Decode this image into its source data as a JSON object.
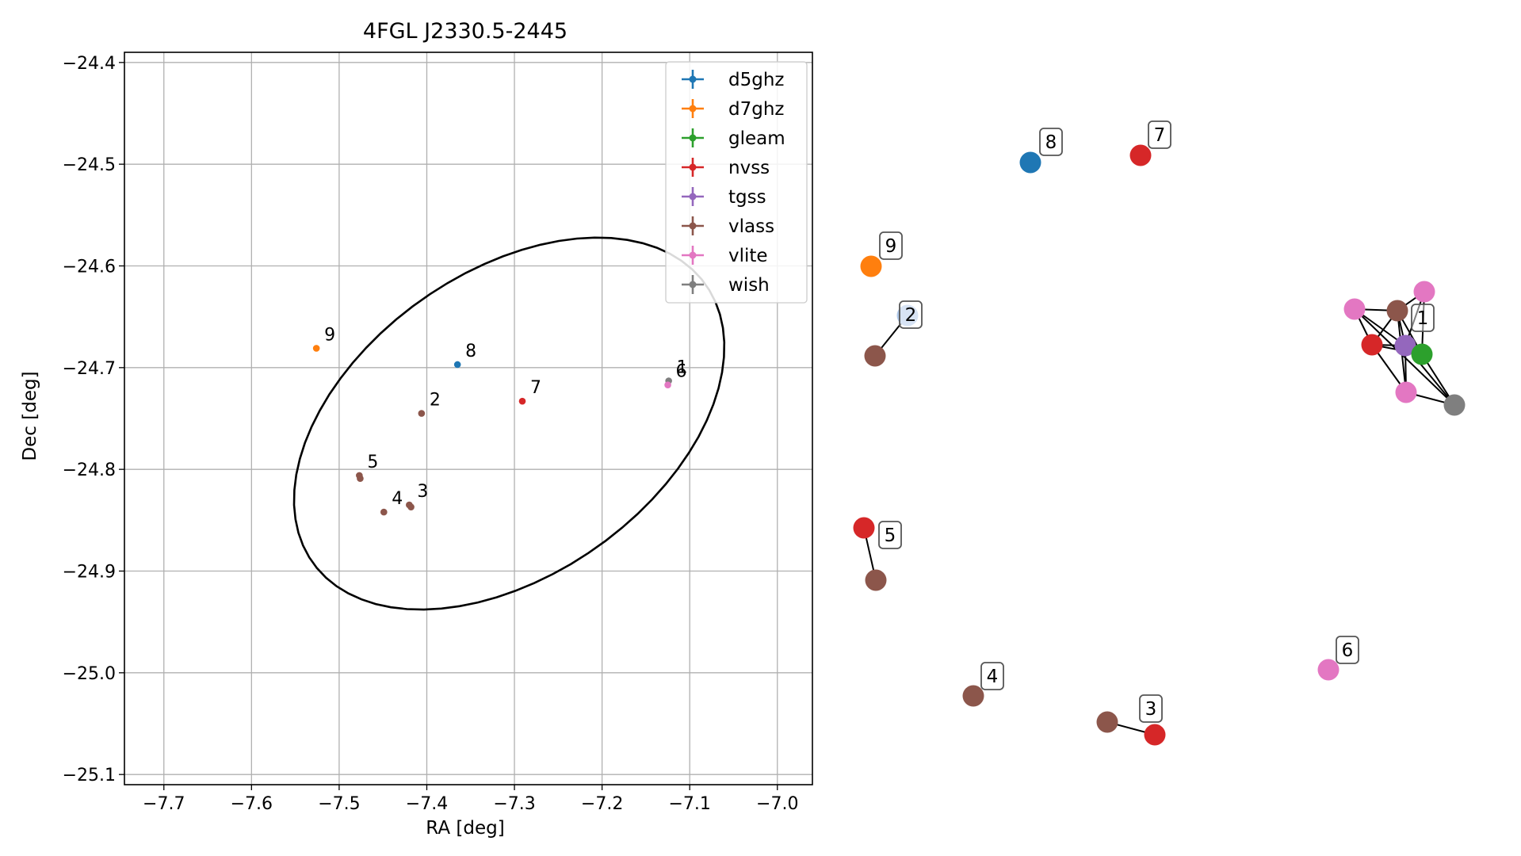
{
  "chart_data": [
    {
      "type": "scatter",
      "title": "4FGL J2330.5-2445",
      "xlabel": "RA [deg]",
      "ylabel": "Dec [deg]",
      "xlim": [
        -7.745,
        -6.96
      ],
      "ylim": [
        -25.11,
        -24.39
      ],
      "x_ticks": [
        "−7.7",
        "−7.6",
        "−7.5",
        "−7.4",
        "−7.3",
        "−7.2",
        "−7.1",
        "−7.0"
      ],
      "y_ticks": [
        "−24.4",
        "−24.5",
        "−24.6",
        "−24.7",
        "−24.8",
        "−24.9",
        "−25.0",
        "−25.1"
      ],
      "grid": true,
      "legend_position": "top-right",
      "series": [
        {
          "name": "d5ghz",
          "color": "#1f77b4"
        },
        {
          "name": "d7ghz",
          "color": "#ff7f0e"
        },
        {
          "name": "gleam",
          "color": "#2ca02c"
        },
        {
          "name": "nvss",
          "color": "#d62728"
        },
        {
          "name": "tgss",
          "color": "#9467bd"
        },
        {
          "name": "vlass",
          "color": "#8c564b"
        },
        {
          "name": "vlite",
          "color": "#e377c2"
        },
        {
          "name": "wish",
          "color": "#7f7f7f"
        }
      ],
      "points": [
        {
          "ra": -7.526,
          "dec": -24.681,
          "series": "d7ghz",
          "label": "9"
        },
        {
          "ra": -7.365,
          "dec": -24.697,
          "series": "d5ghz",
          "label": "8"
        },
        {
          "ra": -7.291,
          "dec": -24.733,
          "series": "nvss",
          "label": "7"
        },
        {
          "ra": -7.406,
          "dec": -24.745,
          "series": "vlass",
          "label": "2"
        },
        {
          "ra": -7.477,
          "dec": -24.806,
          "series": "vlass",
          "label": "5"
        },
        {
          "ra": -7.476,
          "dec": -24.809,
          "series": "vlass",
          "label": ""
        },
        {
          "ra": -7.42,
          "dec": -24.835,
          "series": "vlass",
          "label": "3"
        },
        {
          "ra": -7.418,
          "dec": -24.837,
          "series": "vlass",
          "label": ""
        },
        {
          "ra": -7.449,
          "dec": -24.842,
          "series": "vlass",
          "label": "4"
        },
        {
          "ra": -7.124,
          "dec": -24.713,
          "series": "wish",
          "label": "1"
        },
        {
          "ra": -7.125,
          "dec": -24.717,
          "series": "vlite",
          "label": "6"
        }
      ],
      "ellipse": {
        "center": [
          -7.306,
          -24.755
        ],
        "semi_axes": [
          0.264,
          0.155
        ],
        "angle_deg": 27,
        "color": "#000000"
      }
    },
    {
      "type": "network",
      "nodes": [
        {
          "id": "n8",
          "series": "d5ghz",
          "color": "#1f77b4",
          "label": "8"
        },
        {
          "id": "n7",
          "series": "nvss",
          "color": "#d62728",
          "label": "7"
        },
        {
          "id": "n9",
          "series": "d7ghz",
          "color": "#ff7f0e",
          "label": "9"
        },
        {
          "id": "n2a",
          "series": "d5ghz",
          "color": "#aec7e8",
          "label": "2"
        },
        {
          "id": "n2b",
          "series": "vlass",
          "color": "#8c564b",
          "label": ""
        },
        {
          "id": "c1",
          "series": "vlite",
          "color": "#e377c2",
          "label": ""
        },
        {
          "id": "c2",
          "series": "vlass",
          "color": "#8c564b",
          "label": ""
        },
        {
          "id": "c3",
          "series": "vlite",
          "color": "#e377c2",
          "label": ""
        },
        {
          "id": "c4",
          "series": "nvss",
          "color": "#d62728",
          "label": ""
        },
        {
          "id": "c5",
          "series": "tgss",
          "color": "#9467bd",
          "label": "1"
        },
        {
          "id": "c6",
          "series": "gleam",
          "color": "#2ca02c",
          "label": ""
        },
        {
          "id": "c7",
          "series": "vlite",
          "color": "#e377c2",
          "label": ""
        },
        {
          "id": "c8",
          "series": "wish",
          "color": "#7f7f7f",
          "label": ""
        },
        {
          "id": "n5a",
          "series": "nvss",
          "color": "#d62728",
          "label": "5"
        },
        {
          "id": "n5b",
          "series": "vlass",
          "color": "#8c564b",
          "label": ""
        },
        {
          "id": "n6",
          "series": "vlite",
          "color": "#e377c2",
          "label": "6"
        },
        {
          "id": "n4",
          "series": "vlass",
          "color": "#8c564b",
          "label": "4"
        },
        {
          "id": "n3a",
          "series": "vlass",
          "color": "#8c564b",
          "label": ""
        },
        {
          "id": "n3b",
          "series": "nvss",
          "color": "#d62728",
          "label": "3"
        }
      ],
      "edges": [
        [
          "n2a",
          "n2b"
        ],
        [
          "n5a",
          "n5b"
        ],
        [
          "n3a",
          "n3b"
        ],
        [
          "c1",
          "c2"
        ],
        [
          "c1",
          "c4"
        ],
        [
          "c1",
          "c5"
        ],
        [
          "c1",
          "c8"
        ],
        [
          "c2",
          "c3"
        ],
        [
          "c2",
          "c4"
        ],
        [
          "c2",
          "c5"
        ],
        [
          "c2",
          "c6"
        ],
        [
          "c2",
          "c7"
        ],
        [
          "c3",
          "c5"
        ],
        [
          "c3",
          "c6"
        ],
        [
          "c4",
          "c5"
        ],
        [
          "c4",
          "c6"
        ],
        [
          "c4",
          "c7"
        ],
        [
          "c5",
          "c6"
        ],
        [
          "c5",
          "c7"
        ],
        [
          "c5",
          "c8"
        ],
        [
          "c6",
          "c8"
        ],
        [
          "c7",
          "c8"
        ]
      ]
    }
  ]
}
